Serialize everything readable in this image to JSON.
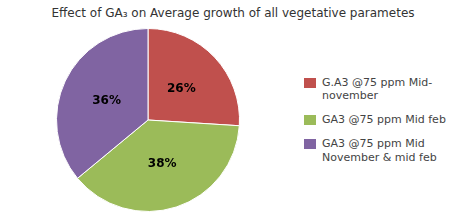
{
  "chart_data": {
    "type": "pie",
    "title": "Effect of GA₃ on Average growth of all vegetative parametes",
    "categories": [
      "G.A3 @75 ppm Mid-\nnovember",
      "GA3 @75 ppm Mid feb",
      "GA3 @75 ppm Mid\nNovember & mid feb"
    ],
    "values": [
      26,
      38,
      36
    ],
    "value_labels": [
      "26%",
      "38%",
      "36%"
    ],
    "data_labels": true,
    "colors": [
      "#c0504d",
      "#9bbb59",
      "#8064a2"
    ],
    "legend": "right"
  }
}
